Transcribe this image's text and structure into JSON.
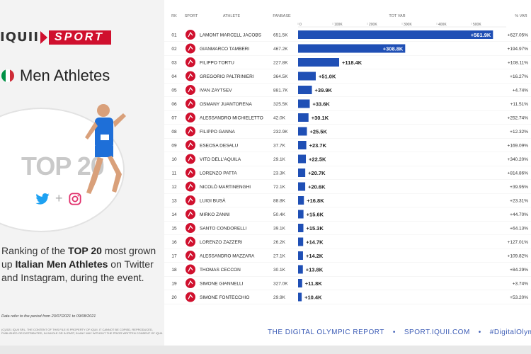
{
  "brand": {
    "iquii": "IQUII",
    "sport": "SPORT"
  },
  "heading": "Men Athletes",
  "badge": "TOP 20",
  "ranking": {
    "pre": "Ranking of the ",
    "top": "TOP 20",
    "mid": " most grown up ",
    "athletes": "Italian Men Athletes",
    "post": " on Twitter and Instagram, during the event."
  },
  "period_note": "Data refer to the period from 23/07/2021 to 09/08/2021",
  "copyright": "(C)2021 IQUII SRL. THE CONTENT OF THIS FILE IS PROPERTY OF IQUII. IT CANNOT BE COPIED, REPRODUCED, PUBLISHED OR DISTRIBUTED, IN WHOLE OR IN PART, IN ANY WAY WITHOUT THE PRIOR WRITTEN CONSENT OF IQUII.",
  "footer": {
    "report": "THE DIGITAL OLYMPIC REPORT",
    "site": "SPORT.IQUII.COM",
    "hashtag": "#DigitalOlympicRe"
  },
  "colors": {
    "brand_red": "#d0102e",
    "bar_blue": "#1f4fb5",
    "italy_green": "#009246",
    "italy_red": "#ce2b37"
  },
  "icons": {
    "twitter": "twitter-icon",
    "instagram": "instagram-icon",
    "sport": "sport-icon"
  },
  "chart_data": {
    "type": "bar",
    "orientation": "horizontal",
    "columns": [
      "RK",
      "SPORT",
      "ATHLETE",
      "FANBASE",
      "TOT VAR",
      "% VAR"
    ],
    "xlim": [
      0,
      600000
    ],
    "x_ticks": [
      "0",
      "100K",
      "200K",
      "300K",
      "400K",
      "500K"
    ],
    "ranks": [
      "01",
      "02",
      "03",
      "04",
      "05",
      "06",
      "07",
      "08",
      "09",
      "10",
      "11",
      "12",
      "13",
      "14",
      "15",
      "16",
      "17",
      "18",
      "19",
      "20"
    ],
    "categories": [
      "LAMONT MARCELL JACOBS",
      "GIANMARCO TAMBERI",
      "FILIPPO TORTU",
      "GREGORIO PALTRINIERI",
      "IVAN ZAYTSEV",
      "OSMANY JUANTORENA",
      "ALESSANDRO MICHIELETTO",
      "FILIPPO GANNA",
      "ESEOSA DESALU",
      "VITO DELL'AQUILA",
      "LORENZO PATTA",
      "NICOLÒ MARTINENGHI",
      "LUIGI BUSÀ",
      "MIRKO ZANNI",
      "SANTO CONDORELLI",
      "LORENZO ZAZZERI",
      "ALESSANDRO MAZZARA",
      "THOMAS CECCON",
      "SIMONE GIANNELLI",
      "SIMONE FONTECCHIO"
    ],
    "fanbase": [
      "651.5K",
      "467.2K",
      "227.8K",
      "364.5K",
      "881.7K",
      "325.5K",
      "42.0K",
      "232.9K",
      "37.7K",
      "29.1K",
      "23.3K",
      "72.1K",
      "88.8K",
      "50.4K",
      "39.1K",
      "26.2K",
      "27.1K",
      "30.1K",
      "327.0K",
      "29.9K"
    ],
    "values": [
      561900,
      308800,
      118400,
      51000,
      39900,
      33600,
      30100,
      25500,
      23700,
      22500,
      20700,
      20600,
      16800,
      15600,
      15300,
      14700,
      14200,
      13800,
      11800,
      10400
    ],
    "value_labels": [
      "+561.9K",
      "+308.8K",
      "+118.4K",
      "+51.0K",
      "+39.9K",
      "+33.6K",
      "+30.1K",
      "+25.5K",
      "+23.7K",
      "+22.5K",
      "+20.7K",
      "+20.6K",
      "+16.8K",
      "+15.6K",
      "+15.3K",
      "+14.7K",
      "+14.2K",
      "+13.8K",
      "+11.8K",
      "+10.4K"
    ],
    "pct_var": [
      "+627.05%",
      "+194.97%",
      "+108.11%",
      "+16.27%",
      "+4.74%",
      "+11.51%",
      "+252.74%",
      "+12.32%",
      "+169.09%",
      "+340.20%",
      "+814.86%",
      "+39.95%",
      "+23.31%",
      "+44.70%",
      "+64.13%",
      "+127.01%",
      "+109.82%",
      "+84.29%",
      "+3.74%",
      "+53.20%"
    ]
  }
}
